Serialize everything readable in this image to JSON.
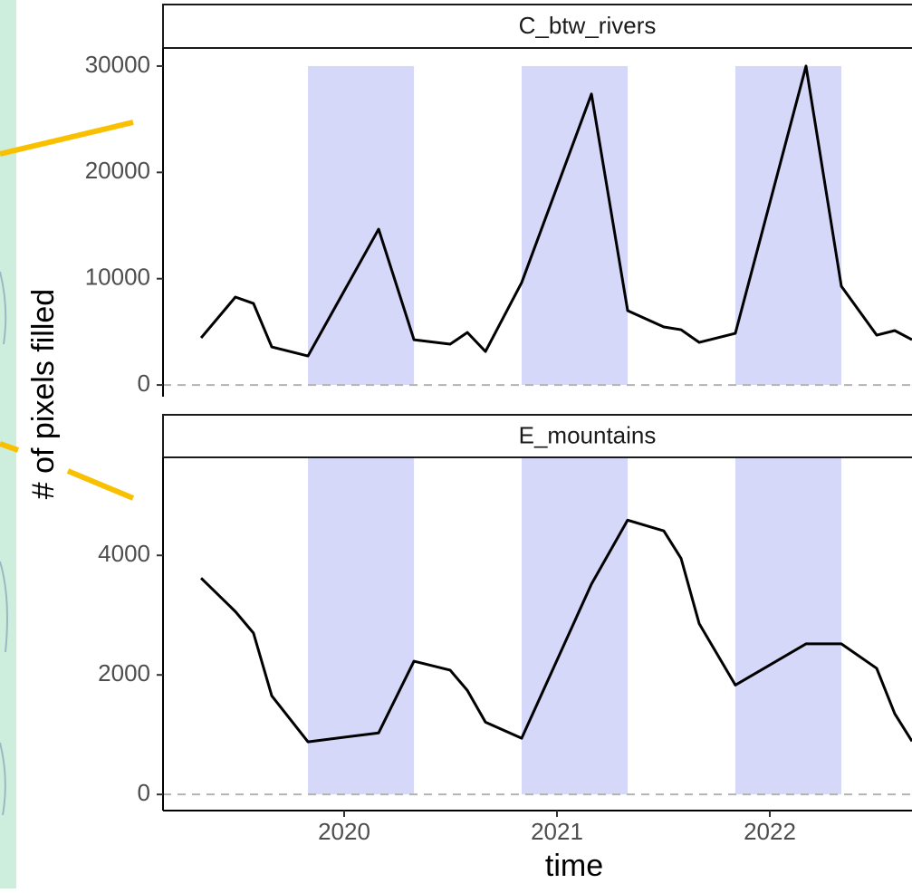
{
  "chart_data": {
    "type": "line",
    "xlabel": "time",
    "ylabel": "# of pixels filled",
    "x": [
      2019.328,
      2019.489,
      2019.574,
      2019.66,
      2019.83,
      2020.162,
      2020.328,
      2020.498,
      2020.579,
      2020.664,
      2020.834,
      2021.162,
      2021.332,
      2021.502,
      2021.583,
      2021.668,
      2021.838,
      2022.17,
      2022.336,
      2022.502,
      2022.587,
      2022.668
    ],
    "xlim": [
      2019.149,
      2022.668
    ],
    "xticks": [
      2020,
      2021,
      2022
    ],
    "shading": [
      {
        "x0": 2019.83,
        "x1": 2020.328
      },
      {
        "x0": 2020.834,
        "x1": 2021.332
      },
      {
        "x0": 2021.838,
        "x1": 2022.336
      }
    ],
    "shade_color": "#d6d8fa",
    "line_color": "#000000",
    "zero_line": true,
    "panels": [
      {
        "title": "C_btw_rivers",
        "values": [
          4430,
          8270,
          7670,
          3580,
          2730,
          14660,
          4260,
          3840,
          4940,
          3150,
          9630,
          27370,
          6990,
          5460,
          5200,
          4010,
          4860,
          30000,
          9290,
          4690,
          5120,
          4260
        ],
        "ylim": [
          -1100,
          31700
        ],
        "yticks": [
          0,
          10000,
          20000,
          30000
        ],
        "shade_top": 30000
      },
      {
        "title": "E_mountains",
        "values": [
          3620,
          3060,
          2700,
          1650,
          880,
          1030,
          2230,
          2080,
          1740,
          1210,
          940,
          3520,
          4590,
          4410,
          3950,
          2860,
          1830,
          2520,
          2520,
          2110,
          1350,
          890
        ],
        "ylim": [
          -270,
          5640
        ],
        "yticks": [
          0,
          2000,
          4000
        ],
        "shade_top": 5640
      }
    ]
  }
}
